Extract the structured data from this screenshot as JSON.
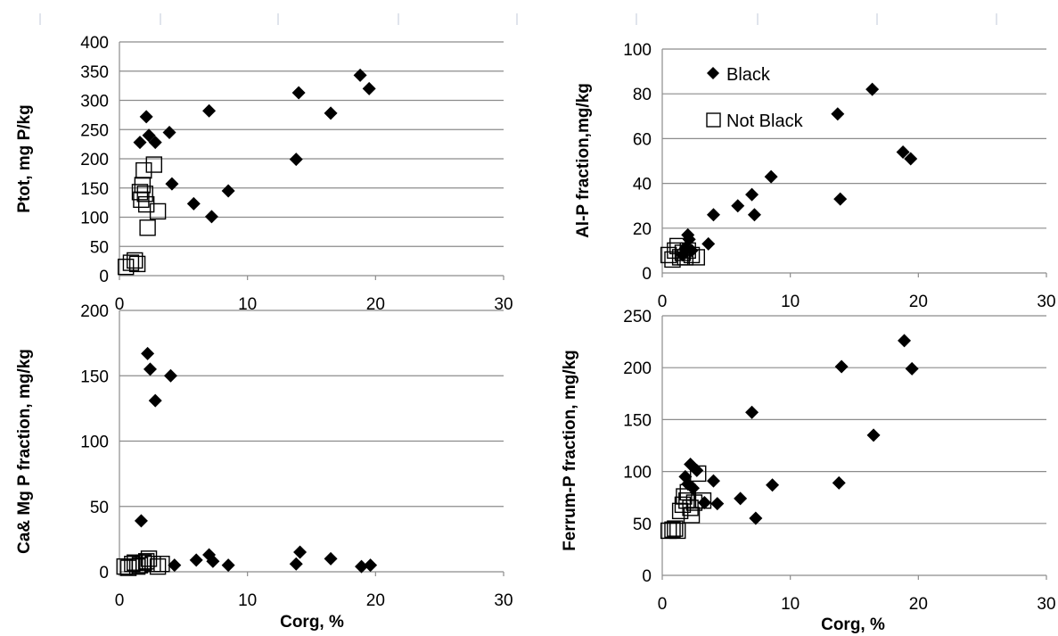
{
  "chart_data": [
    {
      "type": "scatter",
      "id": "ptot",
      "ylabel": "Ptot, mg P/kg",
      "xlabel": "",
      "xlim": [
        0,
        30
      ],
      "ylim": [
        0,
        400
      ],
      "xticks": [
        "0",
        "10",
        "20",
        "30"
      ],
      "yticks": [
        "0",
        "50",
        "100",
        "150",
        "200",
        "250",
        "300",
        "350",
        "400"
      ],
      "yvals": [
        0,
        50,
        100,
        150,
        200,
        250,
        300,
        350,
        400
      ],
      "series": [
        {
          "marker": "diamond",
          "points": [
            [
              1.6,
              228
            ],
            [
              2.1,
              272
            ],
            [
              2.3,
              240
            ],
            [
              2.8,
              228
            ],
            [
              3.9,
              245
            ],
            [
              4.1,
              157
            ],
            [
              5.8,
              123
            ],
            [
              7.0,
              282
            ],
            [
              7.2,
              101
            ],
            [
              8.5,
              145
            ],
            [
              13.8,
              199
            ],
            [
              14.0,
              313
            ],
            [
              16.5,
              278
            ],
            [
              18.8,
              343
            ],
            [
              19.5,
              320
            ]
          ]
        },
        {
          "marker": "square",
          "points": [
            [
              0.5,
              15
            ],
            [
              0.9,
              22
            ],
            [
              1.2,
              26
            ],
            [
              1.4,
              20
            ],
            [
              1.6,
              143
            ],
            [
              1.7,
              130
            ],
            [
              1.8,
              155
            ],
            [
              1.9,
              180
            ],
            [
              2.0,
              140
            ],
            [
              2.1,
              122
            ],
            [
              2.2,
              82
            ],
            [
              2.7,
              190
            ],
            [
              3.0,
              110
            ]
          ]
        }
      ]
    },
    {
      "type": "scatter",
      "id": "alp",
      "ylabel": "Al-P fraction,mg/kg",
      "xlabel": "",
      "xlim": [
        0,
        30
      ],
      "ylim": [
        0,
        100
      ],
      "xticks": [
        "0",
        "10",
        "20",
        "30"
      ],
      "yticks": [
        "0",
        "20",
        "40",
        "60",
        "80",
        "100"
      ],
      "yvals": [
        0,
        20,
        40,
        60,
        80,
        100
      ],
      "legend": {
        "position": "top-left",
        "entries": [
          "Black",
          "Not Black"
        ]
      },
      "series": [
        {
          "name": "Black",
          "marker": "diamond",
          "points": [
            [
              1.6,
              8
            ],
            [
              1.8,
              11
            ],
            [
              2.0,
              17
            ],
            [
              2.1,
              15
            ],
            [
              2.3,
              10
            ],
            [
              3.6,
              13
            ],
            [
              4.0,
              26
            ],
            [
              5.9,
              30
            ],
            [
              7.0,
              35
            ],
            [
              7.2,
              26
            ],
            [
              8.5,
              43
            ],
            [
              13.7,
              71
            ],
            [
              13.9,
              33
            ],
            [
              16.4,
              82
            ],
            [
              18.8,
              54
            ],
            [
              19.4,
              51
            ]
          ]
        },
        {
          "name": "Not Black",
          "marker": "square",
          "points": [
            [
              0.5,
              8
            ],
            [
              0.8,
              6
            ],
            [
              1.0,
              10
            ],
            [
              1.2,
              12
            ],
            [
              1.4,
              7
            ],
            [
              1.6,
              9
            ],
            [
              1.8,
              7
            ],
            [
              2.0,
              10
            ],
            [
              2.3,
              8
            ],
            [
              2.7,
              7
            ]
          ]
        }
      ]
    },
    {
      "type": "scatter",
      "id": "camg",
      "ylabel": "Ca& Mg P fraction, mg/kg",
      "xlabel": "Corg, %",
      "xlim": [
        0,
        30
      ],
      "ylim": [
        0,
        200
      ],
      "xticks": [
        "0",
        "10",
        "20",
        "30"
      ],
      "yticks": [
        "0",
        "50",
        "100",
        "150",
        "200"
      ],
      "yvals": [
        0,
        50,
        100,
        150,
        200
      ],
      "series": [
        {
          "marker": "diamond",
          "points": [
            [
              1.7,
              39
            ],
            [
              2.2,
              167
            ],
            [
              2.4,
              155
            ],
            [
              2.8,
              131
            ],
            [
              4.0,
              150
            ],
            [
              4.3,
              5
            ],
            [
              6.0,
              9
            ],
            [
              7.0,
              13
            ],
            [
              7.3,
              8
            ],
            [
              8.5,
              5
            ],
            [
              13.8,
              6
            ],
            [
              14.1,
              15
            ],
            [
              16.5,
              10
            ],
            [
              18.9,
              4
            ],
            [
              19.6,
              5
            ]
          ]
        },
        {
          "marker": "square",
          "points": [
            [
              0.4,
              4
            ],
            [
              0.7,
              3
            ],
            [
              1.0,
              6
            ],
            [
              1.2,
              7
            ],
            [
              1.4,
              4
            ],
            [
              1.6,
              5
            ],
            [
              1.9,
              7
            ],
            [
              2.1,
              8
            ],
            [
              2.3,
              10
            ],
            [
              2.6,
              6
            ],
            [
              3.0,
              4
            ],
            [
              3.3,
              6
            ]
          ]
        }
      ]
    },
    {
      "type": "scatter",
      "id": "ferrum",
      "ylabel": "Ferrum-P  fraction, mg/kg",
      "xlabel": "Corg, %",
      "xlim": [
        0,
        30
      ],
      "ylim": [
        0,
        250
      ],
      "xticks": [
        "0",
        "10",
        "20",
        "30"
      ],
      "yticks": [
        "0",
        "50",
        "100",
        "150",
        "200",
        "250"
      ],
      "yvals": [
        0,
        50,
        100,
        150,
        200,
        250
      ],
      "series": [
        {
          "marker": "diamond",
          "points": [
            [
              1.8,
              95
            ],
            [
              2.0,
              88
            ],
            [
              2.2,
              107
            ],
            [
              2.4,
              84
            ],
            [
              2.7,
              101
            ],
            [
              3.3,
              70
            ],
            [
              4.0,
              91
            ],
            [
              4.3,
              69
            ],
            [
              6.1,
              74
            ],
            [
              7.0,
              157
            ],
            [
              7.3,
              55
            ],
            [
              8.6,
              87
            ],
            [
              13.8,
              89
            ],
            [
              14.0,
              201
            ],
            [
              16.5,
              135
            ],
            [
              18.9,
              226
            ],
            [
              19.5,
              199
            ]
          ]
        },
        {
          "marker": "square",
          "points": [
            [
              0.5,
              43
            ],
            [
              0.8,
              44
            ],
            [
              1.0,
              45
            ],
            [
              1.2,
              43
            ],
            [
              1.4,
              62
            ],
            [
              1.6,
              68
            ],
            [
              1.7,
              76
            ],
            [
              1.9,
              72
            ],
            [
              2.0,
              80
            ],
            [
              2.2,
              65
            ],
            [
              2.3,
              58
            ],
            [
              2.5,
              70
            ],
            [
              2.8,
              98
            ],
            [
              3.2,
              72
            ]
          ]
        }
      ]
    }
  ]
}
